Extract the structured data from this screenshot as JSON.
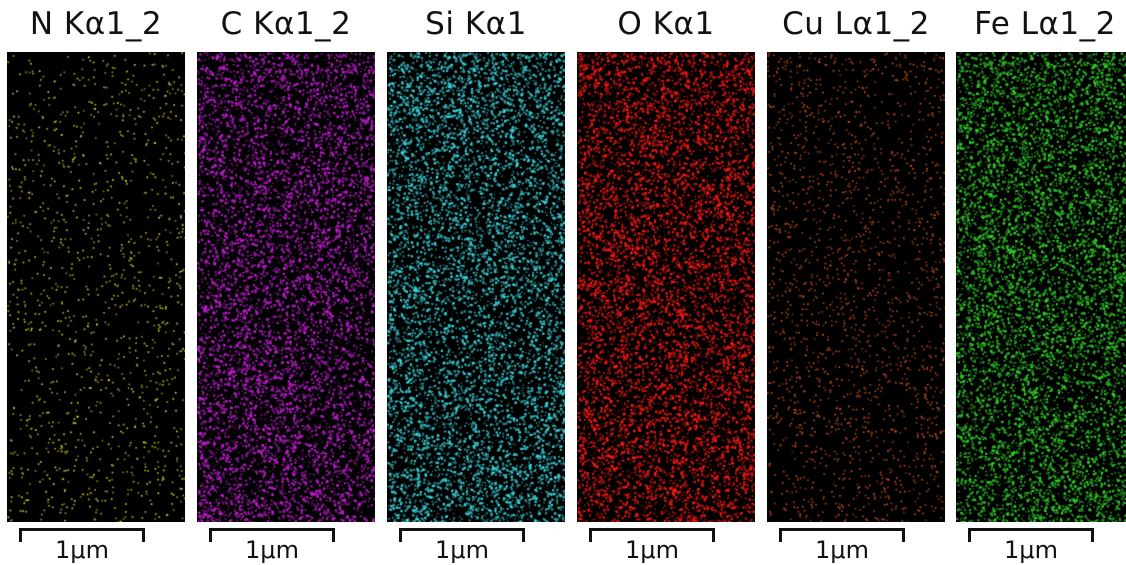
{
  "panels": [
    {
      "title": "N Kα1_2",
      "scale_label": "1μm",
      "element": "N",
      "color": "#e6e236",
      "density": 0.35,
      "blob_level": 0.0
    },
    {
      "title": "C Kα1_2",
      "scale_label": "1μm",
      "element": "C",
      "color": "#c81fd8",
      "density": 0.95,
      "blob_level": 0.6
    },
    {
      "title": "Si Kα1",
      "scale_label": "1μm",
      "element": "Si",
      "color": "#3fd9e0",
      "density": 1.0,
      "blob_level": 0.2
    },
    {
      "title": "O Kα1",
      "scale_label": "1μm",
      "element": "O",
      "color": "#ff1a14",
      "density": 1.0,
      "blob_level": 0.5
    },
    {
      "title": "Cu Lα1_2",
      "scale_label": "1μm",
      "element": "Cu",
      "color": "#e25a1a",
      "density": 0.55,
      "blob_level": 0.0
    },
    {
      "title": "Fe Lα1_2",
      "scale_label": "1μm",
      "element": "Fe",
      "color": "#34d42c",
      "density": 1.0,
      "blob_level": 0.4
    }
  ],
  "background_color": "#000000"
}
